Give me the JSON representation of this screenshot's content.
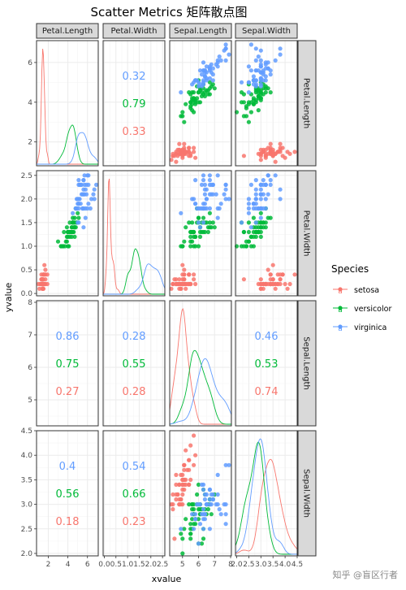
{
  "chart_data": {
    "type": "scatter",
    "title": "Scatter Metrics 矩阵散点图",
    "xlabel": "xvalue",
    "ylabel": "yvalue",
    "grid": true,
    "legend_position": "right",
    "legend": {
      "title": "Species",
      "entries": [
        {
          "name": "setosa",
          "glyph": "a",
          "color": "#F8766D"
        },
        {
          "name": "versicolor",
          "glyph": "a",
          "color": "#00BA38"
        },
        {
          "name": "virginica",
          "glyph": "a",
          "color": "#619CFF"
        }
      ]
    },
    "columns": [
      "Petal.Length",
      "Petal.Width",
      "Sepal.Length",
      "Sepal.Width"
    ],
    "rows": [
      "Petal.Length",
      "Petal.Width",
      "Sepal.Length",
      "Sepal.Width"
    ],
    "x_axes": [
      {
        "range": [
          0.8,
          7.1
        ],
        "ticks": [
          2,
          4,
          6
        ],
        "tick_labels": [
          "2",
          "4",
          "6"
        ]
      },
      {
        "range": [
          -0.05,
          2.6
        ],
        "ticks": [
          0,
          0.5,
          1,
          1.5,
          2,
          2.5
        ],
        "tick_labels": [
          "0.0",
          "0.5",
          "1.0",
          "1.5",
          "2.0",
          "2.5"
        ]
      },
      {
        "range": [
          4.2,
          8.05
        ],
        "ticks": [
          5,
          6,
          7,
          8
        ],
        "tick_labels": [
          "5",
          "6",
          "7",
          "8"
        ]
      },
      {
        "range": [
          1.95,
          4.5
        ],
        "ticks": [
          2,
          2.5,
          3,
          3.5,
          4,
          4.5
        ],
        "tick_labels": [
          "2.0",
          "2.5",
          "3.0",
          "3.5",
          "4.0",
          "4.5"
        ]
      }
    ],
    "y_axes": [
      {
        "range": [
          0.8,
          7.1
        ],
        "ticks": [
          2,
          4,
          6
        ],
        "tick_labels": [
          "2",
          "4",
          "6"
        ]
      },
      {
        "range": [
          -0.05,
          2.6
        ],
        "ticks": [
          0,
          0.5,
          1,
          1.5,
          2,
          2.5
        ],
        "tick_labels": [
          "0.0",
          "0.5",
          "1.0",
          "1.5",
          "2.0",
          "2.5"
        ]
      },
      {
        "range": [
          4.2,
          8.05
        ],
        "ticks": [
          5,
          6,
          7,
          8
        ],
        "tick_labels": [
          "5",
          "6",
          "7",
          "8"
        ]
      },
      {
        "range": [
          1.95,
          4.5
        ],
        "ticks": [
          2,
          2.5,
          3,
          3.5,
          4,
          4.5
        ],
        "tick_labels": [
          "2.0",
          "2.5",
          "3.0",
          "3.5",
          "4.0",
          "4.5"
        ]
      }
    ],
    "correlations": [
      {
        "row": 0,
        "col": 1,
        "values": [
          "0.32",
          "0.79",
          "0.33"
        ]
      },
      {
        "row": 2,
        "col": 0,
        "values": [
          "0.86",
          "0.75",
          "0.27"
        ]
      },
      {
        "row": 2,
        "col": 1,
        "values": [
          "0.28",
          "0.55",
          "0.28"
        ]
      },
      {
        "row": 2,
        "col": 3,
        "values": [
          "0.46",
          "0.53",
          "0.74"
        ]
      },
      {
        "row": 3,
        "col": 0,
        "values": [
          "0.4",
          "0.56",
          "0.18"
        ]
      },
      {
        "row": 3,
        "col": 1,
        "values": [
          "0.54",
          "0.66",
          "0.23"
        ]
      }
    ],
    "series": [
      {
        "name": "setosa",
        "color": "#F8766D",
        "Petal.Length": [
          1.4,
          1.4,
          1.3,
          1.5,
          1.4,
          1.7,
          1.4,
          1.5,
          1.4,
          1.5,
          1.5,
          1.6,
          1.4,
          1.1,
          1.2,
          1.5,
          1.3,
          1.4,
          1.7,
          1.5,
          1.7,
          1.5,
          1.0,
          1.7,
          1.9,
          1.6,
          1.6,
          1.5,
          1.4,
          1.6,
          1.6,
          1.5,
          1.5,
          1.4,
          1.5,
          1.2,
          1.3,
          1.4,
          1.3,
          1.5,
          1.3,
          1.3,
          1.3,
          1.6,
          1.9,
          1.4,
          1.6,
          1.4,
          1.5,
          1.4
        ],
        "Petal.Width": [
          0.2,
          0.2,
          0.2,
          0.2,
          0.2,
          0.4,
          0.3,
          0.2,
          0.2,
          0.1,
          0.2,
          0.2,
          0.1,
          0.1,
          0.2,
          0.4,
          0.4,
          0.3,
          0.3,
          0.3,
          0.2,
          0.4,
          0.2,
          0.5,
          0.2,
          0.2,
          0.4,
          0.2,
          0.2,
          0.2,
          0.2,
          0.4,
          0.1,
          0.2,
          0.2,
          0.2,
          0.2,
          0.1,
          0.2,
          0.2,
          0.3,
          0.3,
          0.2,
          0.6,
          0.4,
          0.3,
          0.2,
          0.2,
          0.2,
          0.2
        ],
        "Sepal.Length": [
          5.1,
          4.9,
          4.7,
          4.6,
          5.0,
          5.4,
          4.6,
          5.0,
          4.4,
          4.9,
          5.4,
          4.8,
          4.8,
          4.3,
          5.8,
          5.7,
          5.4,
          5.1,
          5.7,
          5.1,
          5.4,
          5.1,
          4.6,
          5.1,
          4.8,
          5.0,
          5.0,
          5.2,
          5.2,
          4.7,
          4.8,
          5.4,
          5.2,
          5.5,
          4.9,
          5.0,
          5.5,
          4.9,
          4.4,
          5.1,
          5.0,
          4.5,
          4.4,
          5.0,
          5.1,
          4.8,
          5.1,
          4.6,
          5.3,
          5.0
        ],
        "Sepal.Width": [
          3.5,
          3.0,
          3.2,
          3.1,
          3.6,
          3.9,
          3.4,
          3.4,
          2.9,
          3.1,
          3.7,
          3.4,
          3.0,
          3.0,
          4.0,
          4.4,
          3.9,
          3.5,
          3.8,
          3.8,
          3.4,
          3.7,
          3.6,
          3.3,
          3.4,
          3.0,
          3.4,
          3.5,
          3.4,
          3.2,
          3.1,
          3.4,
          4.1,
          4.2,
          3.1,
          3.2,
          3.5,
          3.6,
          3.0,
          3.4,
          3.5,
          2.3,
          3.2,
          3.5,
          3.8,
          3.0,
          3.8,
          3.2,
          3.7,
          3.3
        ]
      },
      {
        "name": "versicolor",
        "color": "#00BA38",
        "Petal.Length": [
          4.7,
          4.5,
          4.9,
          4.0,
          4.6,
          4.5,
          4.7,
          3.3,
          4.6,
          3.9,
          3.5,
          4.2,
          4.0,
          4.7,
          3.6,
          4.4,
          4.5,
          4.1,
          4.5,
          3.9,
          4.8,
          4.0,
          4.9,
          4.7,
          4.3,
          4.4,
          4.8,
          5.0,
          4.5,
          3.5,
          3.8,
          3.7,
          3.9,
          5.1,
          4.5,
          4.5,
          4.7,
          4.4,
          4.1,
          4.0,
          4.4,
          4.6,
          4.0,
          3.3,
          4.2,
          4.2,
          4.2,
          4.3,
          3.0,
          4.1
        ],
        "Petal.Width": [
          1.4,
          1.5,
          1.5,
          1.3,
          1.5,
          1.3,
          1.6,
          1.0,
          1.3,
          1.4,
          1.0,
          1.5,
          1.0,
          1.4,
          1.3,
          1.4,
          1.5,
          1.0,
          1.5,
          1.1,
          1.8,
          1.3,
          1.5,
          1.2,
          1.3,
          1.4,
          1.4,
          1.7,
          1.5,
          1.0,
          1.1,
          1.0,
          1.2,
          1.6,
          1.5,
          1.6,
          1.5,
          1.3,
          1.3,
          1.3,
          1.2,
          1.4,
          1.2,
          1.0,
          1.3,
          1.2,
          1.3,
          1.3,
          1.1,
          1.3
        ],
        "Sepal.Length": [
          7.0,
          6.4,
          6.9,
          5.5,
          6.5,
          5.7,
          6.3,
          4.9,
          6.6,
          5.2,
          5.0,
          5.9,
          6.0,
          6.1,
          5.6,
          6.7,
          5.6,
          5.8,
          6.2,
          5.6,
          5.9,
          6.1,
          6.3,
          6.1,
          6.4,
          6.6,
          6.8,
          6.7,
          6.0,
          5.7,
          5.5,
          5.5,
          5.8,
          6.0,
          5.4,
          6.0,
          6.7,
          6.3,
          5.6,
          5.5,
          5.5,
          6.1,
          5.8,
          5.0,
          5.6,
          5.7,
          5.7,
          6.2,
          5.1,
          5.7
        ],
        "Sepal.Width": [
          3.2,
          3.2,
          3.1,
          2.3,
          2.8,
          2.8,
          3.3,
          2.4,
          2.9,
          2.7,
          2.0,
          3.0,
          2.2,
          2.9,
          2.9,
          3.1,
          3.0,
          2.7,
          2.2,
          2.5,
          3.2,
          2.8,
          2.5,
          2.8,
          2.9,
          3.0,
          2.8,
          3.0,
          2.9,
          2.6,
          2.4,
          2.4,
          2.7,
          2.7,
          3.0,
          3.4,
          3.1,
          2.3,
          3.0,
          2.5,
          2.6,
          3.0,
          2.6,
          2.3,
          2.7,
          3.0,
          2.9,
          2.9,
          2.5,
          2.8
        ]
      },
      {
        "name": "virginica",
        "color": "#619CFF",
        "Petal.Length": [
          6.0,
          5.1,
          5.9,
          5.6,
          5.8,
          6.6,
          4.5,
          6.3,
          5.8,
          6.1,
          5.1,
          5.3,
          5.5,
          5.0,
          5.1,
          5.3,
          5.5,
          6.7,
          6.9,
          5.0,
          5.7,
          4.9,
          6.7,
          4.9,
          5.7,
          6.0,
          4.8,
          4.9,
          5.6,
          5.8,
          6.1,
          6.4,
          5.6,
          5.1,
          5.6,
          6.1,
          5.6,
          5.5,
          4.8,
          5.4,
          5.6,
          5.1,
          5.1,
          5.9,
          5.7,
          5.2,
          5.0,
          5.2,
          5.4,
          5.1
        ],
        "Petal.Width": [
          2.5,
          1.9,
          2.1,
          1.8,
          2.2,
          2.1,
          1.7,
          1.8,
          1.8,
          2.5,
          2.0,
          1.9,
          2.1,
          2.0,
          2.4,
          2.3,
          1.8,
          2.2,
          2.3,
          1.5,
          2.3,
          2.0,
          2.0,
          1.8,
          2.1,
          1.8,
          1.8,
          1.8,
          2.1,
          1.6,
          1.9,
          2.0,
          2.2,
          1.5,
          1.4,
          2.3,
          2.4,
          1.8,
          1.8,
          2.1,
          2.4,
          2.3,
          1.9,
          2.3,
          2.5,
          2.3,
          1.9,
          2.0,
          2.3,
          1.8
        ],
        "Sepal.Length": [
          6.3,
          5.8,
          7.1,
          6.3,
          6.5,
          7.6,
          4.9,
          7.3,
          6.7,
          7.2,
          6.5,
          6.4,
          6.8,
          5.7,
          5.8,
          6.4,
          6.5,
          7.7,
          7.7,
          6.0,
          6.9,
          5.6,
          7.7,
          6.3,
          6.7,
          7.2,
          6.2,
          6.1,
          6.4,
          7.2,
          7.4,
          7.9,
          6.4,
          6.3,
          6.1,
          7.7,
          6.3,
          6.4,
          6.0,
          6.9,
          6.7,
          6.9,
          5.8,
          6.8,
          6.7,
          6.7,
          6.3,
          6.5,
          6.2,
          5.9
        ],
        "Sepal.Width": [
          3.3,
          2.7,
          3.0,
          2.9,
          3.0,
          3.0,
          2.5,
          2.9,
          2.5,
          3.6,
          3.2,
          2.7,
          3.0,
          2.5,
          2.8,
          3.2,
          3.0,
          3.8,
          2.6,
          2.2,
          3.2,
          2.8,
          2.8,
          2.7,
          3.3,
          3.2,
          2.8,
          3.0,
          2.8,
          3.0,
          2.8,
          3.8,
          2.8,
          2.8,
          2.6,
          3.0,
          3.4,
          3.1,
          3.0,
          3.1,
          3.1,
          3.1,
          2.7,
          3.2,
          3.3,
          3.0,
          2.5,
          3.0,
          3.4,
          3.0
        ]
      }
    ]
  },
  "watermark": "知乎 @盲区行者"
}
